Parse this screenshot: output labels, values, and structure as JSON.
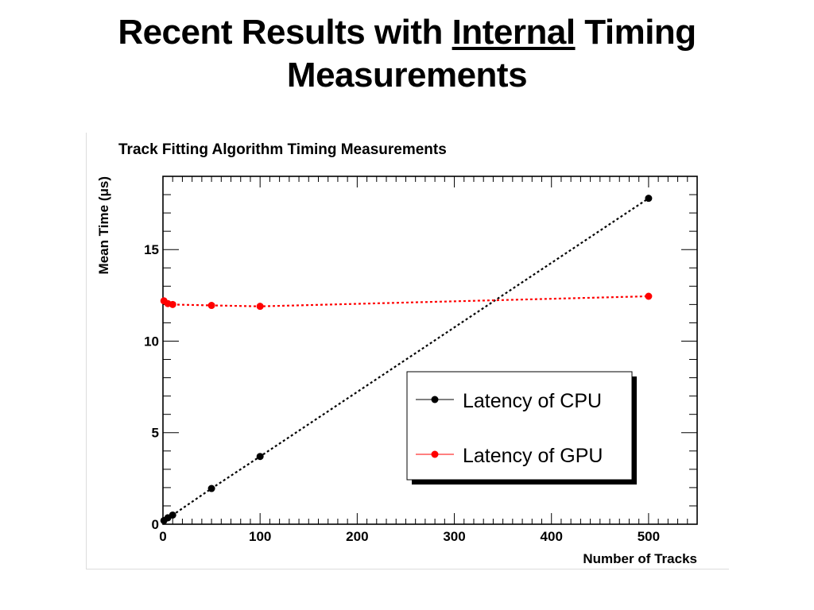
{
  "slide": {
    "title_part1": "Recent Results with ",
    "title_underlined": "Internal",
    "title_part2": " Timing",
    "title_line2": "Measurements"
  },
  "chart_data": {
    "type": "line",
    "title": "Track Fitting Algorithm Timing Measurements",
    "xlabel": "Number of Tracks",
    "ylabel": "Mean Time (μs)",
    "xlim": [
      0,
      550
    ],
    "ylim": [
      0,
      19
    ],
    "xticks": [
      0,
      100,
      200,
      300,
      400,
      500
    ],
    "xtick_labels": [
      "0",
      "100",
      "200",
      "300",
      "400",
      "500"
    ],
    "yticks": [
      0,
      5,
      10,
      15
    ],
    "ytick_labels": [
      "0",
      "5",
      "10",
      "15"
    ],
    "grid": false,
    "legend_position": "bottom-right",
    "series": [
      {
        "name": "Latency of CPU",
        "color": "#000000",
        "line_style": "dotted",
        "x": [
          1,
          5,
          10,
          50,
          100,
          500
        ],
        "y": [
          0.2,
          0.35,
          0.5,
          1.95,
          3.7,
          17.8
        ]
      },
      {
        "name": "Latency of GPU",
        "color": "#ff0000",
        "line_style": "dotted",
        "x": [
          1,
          5,
          10,
          50,
          100,
          500
        ],
        "y": [
          12.2,
          12.05,
          12.0,
          11.95,
          11.9,
          12.45
        ]
      }
    ]
  }
}
